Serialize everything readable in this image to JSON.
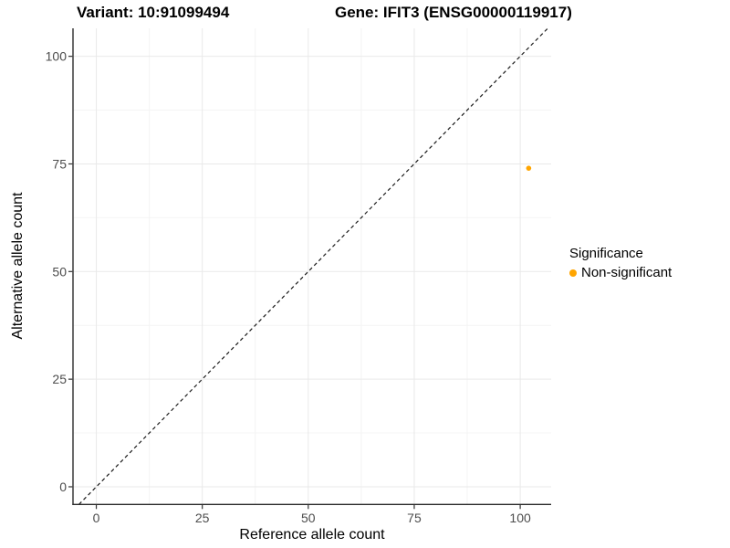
{
  "chart_data": {
    "type": "scatter",
    "title_left": "Variant: 10:91099494",
    "title_right": "Gene: IFIT3 (ENSG00000119917)",
    "xlabel": "Reference allele count",
    "ylabel": "Alternative allele count",
    "xlim": [
      -5.5,
      107.3
    ],
    "ylim": [
      -4.1,
      106.5
    ],
    "x_ticks": [
      0,
      25,
      50,
      75,
      100
    ],
    "y_ticks": [
      0,
      25,
      50,
      75,
      100
    ],
    "x_minor_ticks": [
      12.5,
      37.5,
      62.5,
      87.5
    ],
    "y_minor_ticks": [
      12.5,
      37.5,
      62.5,
      87.5
    ],
    "grid": "major and minor, light gray on white",
    "points": [
      {
        "x": 102,
        "y": 74,
        "series": "Non-significant"
      }
    ],
    "series": [
      {
        "name": "Non-significant",
        "color": "#FFA500"
      }
    ],
    "identity_line": {
      "slope": 1,
      "intercept": 0,
      "style": "dashed",
      "color": "#1a1a1a"
    },
    "legend": {
      "title": "Significance",
      "position": "right",
      "items": [
        {
          "label": "Non-significant",
          "color": "#FFA500"
        }
      ]
    }
  },
  "style_colors": {
    "point": "#FFA500",
    "major_grid": "#e9e9e9",
    "minor_grid": "#f4f4f4",
    "axis_line": "#2b2b2b",
    "tick_mark": "#333333",
    "tick_label": "#4d4d4d",
    "background": "#ffffff"
  }
}
